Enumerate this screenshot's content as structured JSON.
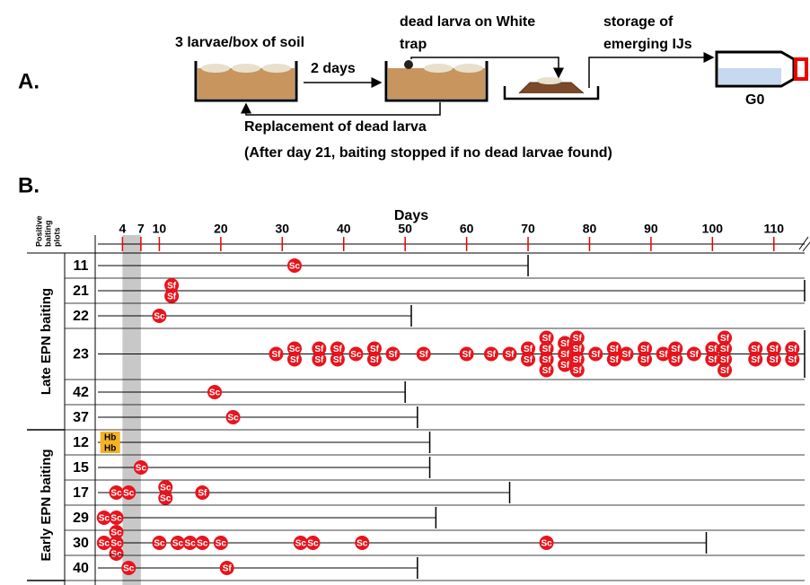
{
  "panel_a": {
    "label": "A.",
    "box_text": "3 larvae/box of soil",
    "arrow_text": "2 days",
    "trap_text": [
      "dead larva on White",
      "trap"
    ],
    "storage_text": [
      "storage of",
      "emerging IJs"
    ],
    "tube_label": "G0",
    "replace_text": "Replacement of dead larva",
    "note": "(After day 21, baiting stopped if no dead larvae found)"
  },
  "panel_b": {
    "label": "B.",
    "x_title": "Days",
    "y_title": [
      "Positive",
      "baiting",
      "plots"
    ],
    "xlim": [
      0,
      115
    ],
    "xticks": [
      4,
      7,
      10,
      20,
      30,
      40,
      50,
      60,
      70,
      80,
      90,
      100,
      110
    ],
    "highlight": [
      4,
      7
    ],
    "sections": [
      {
        "label": "Late EPN baiting",
        "plots": [
          {
            "id": "11",
            "end": 70,
            "markers": [
              {
                "day": 32,
                "labels": [
                  "Sc"
                ]
              }
            ]
          },
          {
            "id": "21",
            "end": 115,
            "markers": [
              {
                "day": 12,
                "labels": [
                  "Sf",
                  "Sf"
                ]
              }
            ]
          },
          {
            "id": "22",
            "end": 51,
            "markers": [
              {
                "day": 10,
                "labels": [
                  "Sc"
                ]
              }
            ]
          },
          {
            "id": "23",
            "end": 115,
            "markers": [
              {
                "day": 29,
                "labels": [
                  "Sf"
                ]
              },
              {
                "day": 32,
                "labels": [
                  "Sc",
                  "Sf"
                ]
              },
              {
                "day": 36,
                "labels": [
                  "Sf",
                  "Sf"
                ]
              },
              {
                "day": 39,
                "labels": [
                  "Sf",
                  "Sf"
                ]
              },
              {
                "day": 42,
                "labels": [
                  "Sc"
                ]
              },
              {
                "day": 45,
                "labels": [
                  "Sf",
                  "Sf"
                ]
              },
              {
                "day": 48,
                "labels": [
                  "Sf"
                ]
              },
              {
                "day": 53,
                "labels": [
                  "Sf"
                ]
              },
              {
                "day": 60,
                "labels": [
                  "Sf"
                ]
              },
              {
                "day": 64,
                "labels": [
                  "Sf"
                ]
              },
              {
                "day": 67,
                "labels": [
                  "Sf"
                ]
              },
              {
                "day": 70,
                "labels": [
                  "Sf",
                  "Sf"
                ]
              },
              {
                "day": 73,
                "labels": [
                  "Sf",
                  "Sf",
                  "Sf",
                  "Sf"
                ]
              },
              {
                "day": 76,
                "labels": [
                  "Sf",
                  "Sf",
                  "Sf"
                ]
              },
              {
                "day": 78,
                "labels": [
                  "Sf",
                  "Sf",
                  "Sf",
                  "Sf"
                ]
              },
              {
                "day": 81,
                "labels": [
                  "Sf"
                ]
              },
              {
                "day": 84,
                "labels": [
                  "Sf",
                  "Sf"
                ]
              },
              {
                "day": 86,
                "labels": [
                  "Sf"
                ]
              },
              {
                "day": 89,
                "labels": [
                  "Sf",
                  "Sf"
                ]
              },
              {
                "day": 92,
                "labels": [
                  "Sf"
                ]
              },
              {
                "day": 94,
                "labels": [
                  "Sf",
                  "Sf"
                ]
              },
              {
                "day": 97,
                "labels": [
                  "Sf"
                ]
              },
              {
                "day": 100,
                "labels": [
                  "Sf",
                  "Sf"
                ]
              },
              {
                "day": 102,
                "labels": [
                  "Sf",
                  "Sf",
                  "Sf",
                  "Sf"
                ]
              },
              {
                "day": 107,
                "labels": [
                  "Sf",
                  "Sf"
                ]
              },
              {
                "day": 110,
                "labels": [
                  "Sf",
                  "Sf"
                ]
              },
              {
                "day": 113,
                "labels": [
                  "Sf",
                  "Sf"
                ]
              }
            ]
          },
          {
            "id": "42",
            "end": 50,
            "markers": [
              {
                "day": 19,
                "labels": [
                  "Sc"
                ]
              }
            ]
          },
          {
            "id": "37",
            "end": 52,
            "markers": [
              {
                "day": 22,
                "labels": [
                  "Sc"
                ]
              }
            ]
          }
        ]
      },
      {
        "label": "Early EPN baiting",
        "plots": [
          {
            "id": "12",
            "end": 54,
            "markers": [
              {
                "day": 2,
                "labels": [
                  "Hb",
                  "Hb"
                ]
              }
            ]
          },
          {
            "id": "15",
            "end": 54,
            "markers": [
              {
                "day": 7,
                "labels": [
                  "Sc"
                ]
              }
            ]
          },
          {
            "id": "17",
            "end": 67,
            "markers": [
              {
                "day": 3,
                "labels": [
                  "Sc"
                ]
              },
              {
                "day": 5,
                "labels": [
                  "Sc"
                ]
              },
              {
                "day": 11,
                "labels": [
                  "Sc",
                  "Sc"
                ]
              },
              {
                "day": 17,
                "labels": [
                  "Sf"
                ]
              }
            ]
          },
          {
            "id": "29",
            "end": 55,
            "markers": [
              {
                "day": 1,
                "labels": [
                  "Sc"
                ]
              },
              {
                "day": 3,
                "labels": [
                  "Sc"
                ]
              }
            ]
          },
          {
            "id": "30",
            "end": 99,
            "markers": [
              {
                "day": 1,
                "labels": [
                  "Sc"
                ]
              },
              {
                "day": 3,
                "labels": [
                  "Sc",
                  "Sc",
                  "Sc"
                ]
              },
              {
                "day": 10,
                "labels": [
                  "Sc"
                ]
              },
              {
                "day": 13,
                "labels": [
                  "Sc"
                ]
              },
              {
                "day": 15,
                "labels": [
                  "Sc"
                ]
              },
              {
                "day": 17,
                "labels": [
                  "Sc"
                ]
              },
              {
                "day": 20,
                "labels": [
                  "Sc"
                ]
              },
              {
                "day": 33,
                "labels": [
                  "Sc"
                ]
              },
              {
                "day": 35,
                "labels": [
                  "Sc"
                ]
              },
              {
                "day": 43,
                "labels": [
                  "Sc"
                ]
              },
              {
                "day": 73,
                "labels": [
                  "Sc"
                ]
              }
            ]
          },
          {
            "id": "40",
            "end": 52,
            "markers": [
              {
                "day": 5,
                "labels": [
                  "Sc"
                ]
              },
              {
                "day": 21,
                "labels": [
                  "Sf"
                ]
              }
            ]
          }
        ]
      }
    ]
  }
}
